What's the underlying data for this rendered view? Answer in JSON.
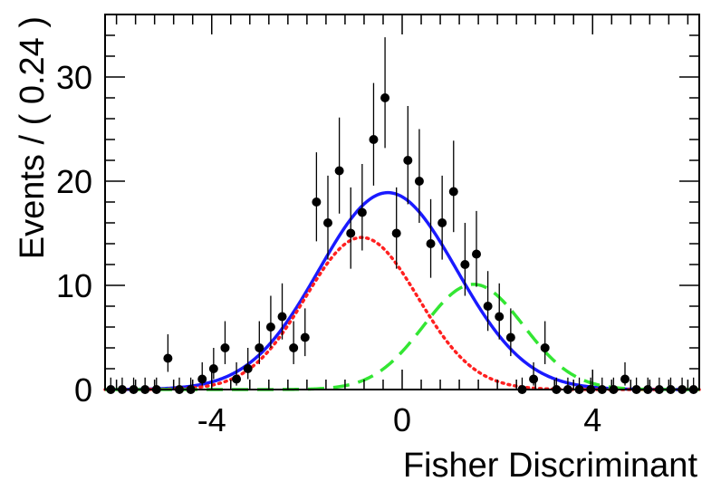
{
  "chart_data": {
    "type": "scatter",
    "xlabel": "Fisher Discriminant",
    "ylabel": "Events / ( 0.24 )",
    "xlim": [
      -6.24,
      6.24
    ],
    "ylim": [
      0,
      36
    ],
    "x_ticks": [
      -4,
      0,
      4
    ],
    "y_ticks": [
      0,
      10,
      20,
      30
    ],
    "x_tick_labels": [
      "-4",
      "0",
      "4"
    ],
    "y_tick_labels": [
      "0",
      "10",
      "20",
      "30"
    ],
    "bin_width": 0.24,
    "grid": false,
    "series": [
      {
        "kind": "points_with_errors",
        "color": "#000000",
        "x": [
          -6.12,
          -5.88,
          -5.64,
          -5.4,
          -5.16,
          -4.92,
          -4.68,
          -4.44,
          -4.2,
          -3.96,
          -3.72,
          -3.48,
          -3.24,
          -3.0,
          -2.76,
          -2.52,
          -2.28,
          -2.04,
          -1.8,
          -1.56,
          -1.32,
          -1.08,
          -0.84,
          -0.6,
          -0.36,
          -0.12,
          0.12,
          0.36,
          0.6,
          0.84,
          1.08,
          1.32,
          1.56,
          1.8,
          2.04,
          2.28,
          2.52,
          2.76,
          3.0,
          3.24,
          3.48,
          3.72,
          3.96,
          4.2,
          4.44,
          4.68,
          4.92,
          5.16,
          5.4,
          5.64,
          5.88,
          6.12
        ],
        "y": [
          0,
          0,
          0,
          0,
          0,
          3,
          0,
          0,
          1,
          2,
          4,
          1,
          2,
          4,
          6,
          7,
          4,
          5,
          18,
          16,
          21,
          15,
          17,
          24,
          28,
          15,
          22,
          20,
          14,
          16,
          19,
          12,
          13,
          8,
          7,
          5,
          0,
          1,
          4,
          0,
          0,
          0,
          0,
          0,
          0,
          1,
          0,
          0,
          0,
          0,
          0,
          0
        ]
      },
      {
        "kind": "curve",
        "color": "#1a1aff",
        "style": "solid",
        "mean": -0.3,
        "sigma": 1.45,
        "peak": 18.9
      },
      {
        "kind": "curve",
        "color": "#ff2020",
        "style": "dotted",
        "mean": -0.85,
        "sigma": 1.18,
        "peak": 14.6
      },
      {
        "kind": "curve",
        "color": "#33e633",
        "style": "dashed",
        "mean": 1.5,
        "sigma": 1.05,
        "peak": 10.1
      }
    ]
  }
}
